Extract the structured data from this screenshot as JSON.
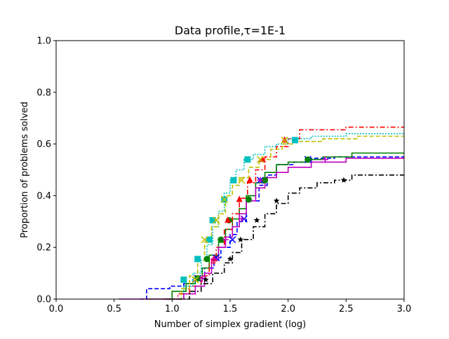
{
  "chart_data": {
    "type": "line",
    "step": true,
    "title": "Data profile,τ=1E-1",
    "xlabel": "Number of simplex gradient (log)",
    "ylabel": "Proportion of problems solved",
    "xlim": [
      0.0,
      3.0
    ],
    "ylim": [
      0.0,
      1.0
    ],
    "xticks": [
      "0.0",
      "0.5",
      "1.0",
      "1.5",
      "2.0",
      "2.5",
      "3.0"
    ],
    "yticks": [
      "0.0",
      "0.2",
      "0.4",
      "0.6",
      "0.8",
      "1.0"
    ],
    "grid": false,
    "legend": "none",
    "series": [
      {
        "color": "#0000ff",
        "dash": "dashed",
        "marker": "x",
        "x": [
          0.72,
          0.78,
          0.98,
          1.1,
          1.18,
          1.28,
          1.36,
          1.42,
          1.5,
          1.56,
          1.64,
          1.75,
          1.82,
          1.9,
          2.05,
          2.2,
          2.4,
          2.55,
          3.0
        ],
        "y": [
          0.0,
          0.04,
          0.05,
          0.06,
          0.08,
          0.12,
          0.16,
          0.2,
          0.25,
          0.3,
          0.38,
          0.44,
          0.48,
          0.52,
          0.53,
          0.545,
          0.55,
          0.55,
          0.55
        ],
        "markers_x": [
          1.22,
          1.38,
          1.52,
          1.62,
          1.76,
          2.17
        ],
        "markers_y": [
          0.08,
          0.16,
          0.23,
          0.31,
          0.46,
          0.54
        ]
      },
      {
        "color": "#008000",
        "dash": "solid",
        "marker": "o",
        "x": [
          0.78,
          1.0,
          1.12,
          1.2,
          1.26,
          1.32,
          1.4,
          1.46,
          1.52,
          1.58,
          1.64,
          1.72,
          1.8,
          1.9,
          2.0,
          2.15,
          2.3,
          2.55,
          3.0
        ],
        "y": [
          0.0,
          0.03,
          0.06,
          0.08,
          0.12,
          0.17,
          0.22,
          0.27,
          0.31,
          0.35,
          0.4,
          0.45,
          0.49,
          0.52,
          0.53,
          0.54,
          0.55,
          0.565,
          0.565
        ],
        "markers_x": [
          1.22,
          1.3,
          1.42,
          1.49,
          1.66,
          1.8,
          2.17
        ],
        "markers_y": [
          0.08,
          0.155,
          0.23,
          0.305,
          0.385,
          0.46,
          0.54
        ]
      },
      {
        "color": "#ff0000",
        "dash": "dashdot",
        "marker": "^",
        "x": [
          0.92,
          1.05,
          1.15,
          1.25,
          1.32,
          1.38,
          1.45,
          1.52,
          1.58,
          1.65,
          1.72,
          1.8,
          1.9,
          2.0,
          2.1,
          2.5,
          3.0
        ],
        "y": [
          0.0,
          0.02,
          0.05,
          0.09,
          0.14,
          0.2,
          0.27,
          0.33,
          0.39,
          0.45,
          0.5,
          0.55,
          0.59,
          0.62,
          0.655,
          0.665,
          0.665
        ],
        "markers_x": [
          1.36,
          1.48,
          1.58,
          1.67,
          1.78,
          1.97
        ],
        "markers_y": [
          0.155,
          0.305,
          0.385,
          0.46,
          0.54,
          0.615
        ]
      },
      {
        "color": "#00bfbf",
        "dash": "dotted",
        "marker": "s",
        "x": [
          1.0,
          1.1,
          1.18,
          1.25,
          1.3,
          1.35,
          1.4,
          1.45,
          1.5,
          1.55,
          1.62,
          1.7,
          1.8,
          1.9,
          2.0,
          2.2,
          2.5,
          3.0
        ],
        "y": [
          0.0,
          0.05,
          0.1,
          0.15,
          0.21,
          0.28,
          0.34,
          0.41,
          0.46,
          0.5,
          0.54,
          0.56,
          0.59,
          0.6,
          0.62,
          0.63,
          0.64,
          0.64
        ],
        "markers_x": [
          1.1,
          1.22,
          1.32,
          1.35,
          1.45,
          1.53,
          1.65,
          2.06
        ],
        "markers_y": [
          0.075,
          0.155,
          0.23,
          0.305,
          0.385,
          0.46,
          0.54,
          0.615
        ]
      },
      {
        "color": "#bfbf00",
        "dash": "dashed",
        "marker": "x",
        "x": [
          0.95,
          1.08,
          1.15,
          1.22,
          1.28,
          1.34,
          1.4,
          1.46,
          1.52,
          1.58,
          1.66,
          1.75,
          1.85,
          1.95,
          2.05,
          2.3,
          2.6,
          3.0
        ],
        "y": [
          0.0,
          0.04,
          0.09,
          0.15,
          0.22,
          0.28,
          0.33,
          0.4,
          0.44,
          0.47,
          0.51,
          0.54,
          0.58,
          0.6,
          0.61,
          0.62,
          0.63,
          0.63
        ],
        "markers_x": [
          1.2,
          1.28,
          1.38,
          1.45,
          1.6,
          1.76,
          1.97
        ],
        "markers_y": [
          0.075,
          0.23,
          0.305,
          0.385,
          0.46,
          0.54,
          0.615
        ]
      },
      {
        "color": "#bf00bf",
        "dash": "solid",
        "marker": "+",
        "x": [
          0.54,
          1.1,
          1.2,
          1.28,
          1.34,
          1.4,
          1.46,
          1.52,
          1.58,
          1.64,
          1.72,
          1.8,
          1.9,
          2.0,
          2.2,
          2.5,
          3.0
        ],
        "y": [
          0.0,
          0.02,
          0.05,
          0.1,
          0.15,
          0.2,
          0.24,
          0.28,
          0.33,
          0.38,
          0.43,
          0.47,
          0.49,
          0.51,
          0.53,
          0.545,
          0.545
        ],
        "markers_x": [
          1.26,
          1.36,
          1.46,
          1.6,
          1.76,
          2.32
        ],
        "markers_y": [
          0.08,
          0.155,
          0.23,
          0.31,
          0.46,
          0.54
        ]
      },
      {
        "color": "#000000",
        "dash": "dashdot",
        "marker": "*",
        "x": [
          0.95,
          1.15,
          1.25,
          1.35,
          1.45,
          1.52,
          1.6,
          1.7,
          1.8,
          1.9,
          2.0,
          2.1,
          2.25,
          2.4,
          2.55,
          3.0
        ],
        "y": [
          0.0,
          0.03,
          0.06,
          0.1,
          0.14,
          0.18,
          0.23,
          0.28,
          0.33,
          0.37,
          0.41,
          0.43,
          0.45,
          0.46,
          0.48,
          0.48
        ],
        "markers_x": [
          1.29,
          1.5,
          1.59,
          1.73,
          1.9,
          2.48
        ],
        "markers_y": [
          0.075,
          0.155,
          0.23,
          0.305,
          0.38,
          0.46
        ]
      }
    ]
  }
}
